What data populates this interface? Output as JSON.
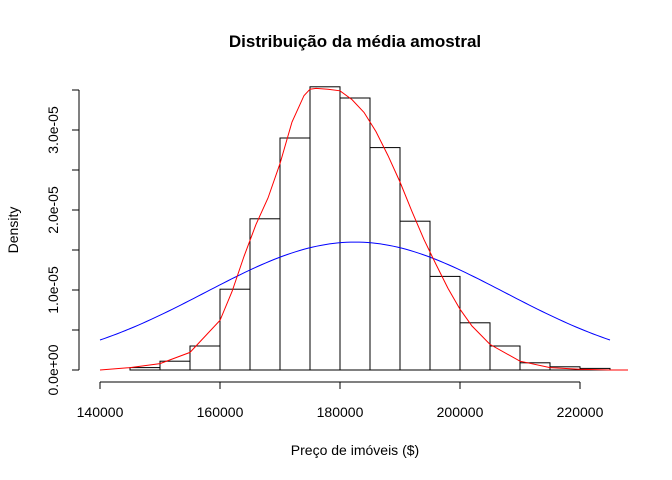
{
  "chart_data": {
    "type": "histogram",
    "title": "Distribuição da média amostral",
    "xlabel": "Preço de imóveis ($)",
    "ylabel": "Density",
    "xlim": [
      140000,
      225000
    ],
    "ylim": [
      0,
      3.5e-05
    ],
    "x_ticks": [
      140000,
      160000,
      180000,
      200000,
      220000
    ],
    "x_tick_labels": [
      "140000",
      "160000",
      "180000",
      "200000",
      "220000"
    ],
    "y_ticks": [
      0,
      1e-05,
      2e-05,
      3e-05
    ],
    "y_tick_labels": [
      "0.0e+00",
      "1.0e-05",
      "2.0e-05",
      "3.0e-05"
    ],
    "bin_width": 5000,
    "bins": [
      {
        "start": 145000,
        "end": 150000,
        "density": 3e-07
      },
      {
        "start": 150000,
        "end": 155000,
        "density": 1.1e-06
      },
      {
        "start": 155000,
        "end": 160000,
        "density": 3e-06
      },
      {
        "start": 160000,
        "end": 165000,
        "density": 1.01e-05
      },
      {
        "start": 165000,
        "end": 170000,
        "density": 1.89e-05
      },
      {
        "start": 170000,
        "end": 175000,
        "density": 2.9e-05
      },
      {
        "start": 175000,
        "end": 180000,
        "density": 3.54e-05
      },
      {
        "start": 180000,
        "end": 185000,
        "density": 3.4e-05
      },
      {
        "start": 185000,
        "end": 190000,
        "density": 2.78e-05
      },
      {
        "start": 190000,
        "end": 195000,
        "density": 1.86e-05
      },
      {
        "start": 195000,
        "end": 200000,
        "density": 1.17e-05
      },
      {
        "start": 200000,
        "end": 205000,
        "density": 5.9e-06
      },
      {
        "start": 205000,
        "end": 210000,
        "density": 3e-06
      },
      {
        "start": 210000,
        "end": 215000,
        "density": 9e-07
      },
      {
        "start": 215000,
        "end": 220000,
        "density": 4e-07
      },
      {
        "start": 220000,
        "end": 225000,
        "density": 2e-07
      }
    ],
    "series": [
      {
        "name": "density-estimate",
        "color": "#ff0000",
        "x": [
          140000,
          145000,
          150000,
          155000,
          160000,
          162000,
          164000,
          166000,
          168000,
          170000,
          172000,
          174000,
          175000,
          176000,
          178000,
          180000,
          182000,
          184000,
          186000,
          188000,
          190000,
          192000,
          194000,
          196000,
          198000,
          200000,
          202000,
          205000,
          210000,
          215000,
          220000,
          225000,
          228000
        ],
        "y": [
          0.0,
          3e-07,
          8e-07,
          2.2e-06,
          6.2e-06,
          9.8e-06,
          1.42e-05,
          1.82e-05,
          2.15e-05,
          2.58e-05,
          3.1e-05,
          3.43e-05,
          3.51e-05,
          3.52e-05,
          3.51e-05,
          3.49e-05,
          3.38e-05,
          3.22e-05,
          2.98e-05,
          2.68e-05,
          2.35e-05,
          1.98e-05,
          1.63e-05,
          1.32e-05,
          1.02e-05,
          7.6e-06,
          5.5e-06,
          3.2e-06,
          1.1e-06,
          3e-07,
          1e-07,
          0.0,
          0.0
        ]
      },
      {
        "name": "normal-curve",
        "color": "#0000ff",
        "mean": 182500,
        "sd": 24950,
        "x_range": [
          140000,
          225000
        ]
      }
    ]
  }
}
